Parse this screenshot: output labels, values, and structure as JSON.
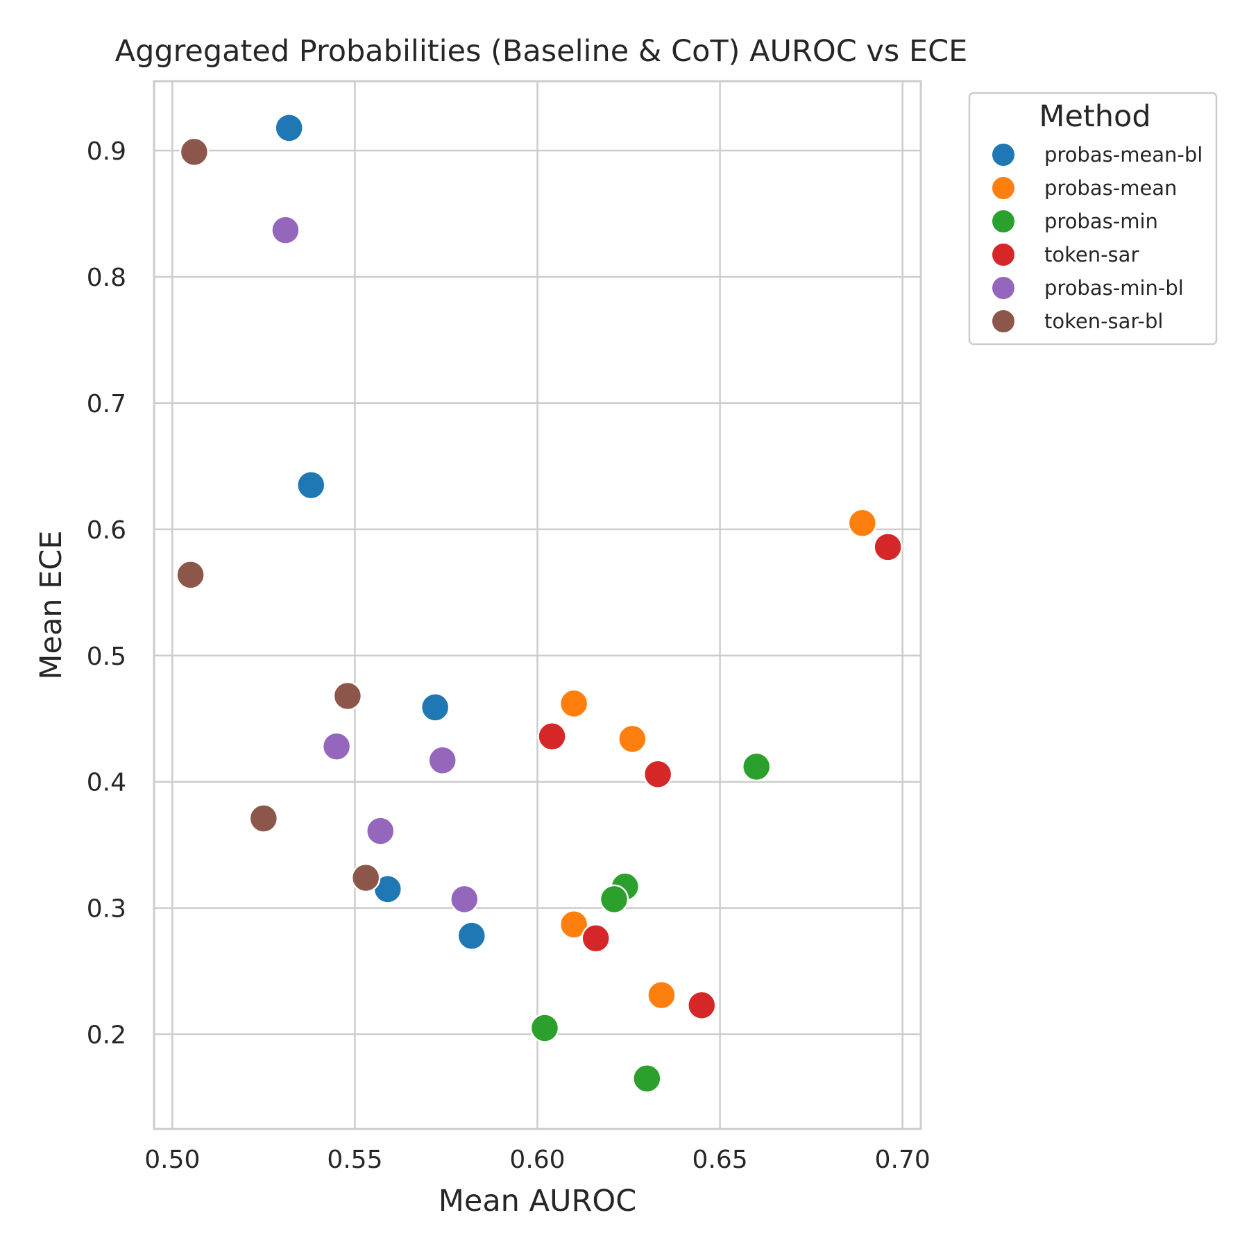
{
  "chart_data": {
    "type": "scatter",
    "title": "Aggregated Probabilities (Baseline & CoT) AUROC vs ECE",
    "xlabel": "Mean AUROC",
    "ylabel": "Mean ECE",
    "xlim": [
      0.495,
      0.705
    ],
    "ylim": [
      0.125,
      0.955
    ],
    "xticks": [
      "0.50",
      "0.55",
      "0.60",
      "0.65",
      "0.70"
    ],
    "yticks": [
      "0.2",
      "0.3",
      "0.4",
      "0.5",
      "0.6",
      "0.7",
      "0.8",
      "0.9"
    ],
    "grid": true,
    "legend": {
      "title": "Method",
      "placement": "outside-right-top"
    },
    "series": [
      {
        "name": "probas-mean-bl",
        "color": "#1f77b4",
        "points": [
          [
            0.532,
            0.918
          ],
          [
            0.538,
            0.635
          ],
          [
            0.572,
            0.459
          ],
          [
            0.559,
            0.315
          ],
          [
            0.582,
            0.278
          ]
        ]
      },
      {
        "name": "probas-mean",
        "color": "#ff7f0e",
        "points": [
          [
            0.689,
            0.605
          ],
          [
            0.61,
            0.462
          ],
          [
            0.626,
            0.434
          ],
          [
            0.61,
            0.287
          ],
          [
            0.634,
            0.231
          ]
        ]
      },
      {
        "name": "probas-min",
        "color": "#2ca02c",
        "points": [
          [
            0.66,
            0.412
          ],
          [
            0.624,
            0.317
          ],
          [
            0.621,
            0.307
          ],
          [
            0.602,
            0.205
          ],
          [
            0.63,
            0.165
          ]
        ]
      },
      {
        "name": "token-sar",
        "color": "#d62728",
        "points": [
          [
            0.696,
            0.586
          ],
          [
            0.604,
            0.436
          ],
          [
            0.633,
            0.406
          ],
          [
            0.616,
            0.276
          ],
          [
            0.645,
            0.223
          ]
        ]
      },
      {
        "name": "probas-min-bl",
        "color": "#9467bd",
        "points": [
          [
            0.531,
            0.837
          ],
          [
            0.545,
            0.428
          ],
          [
            0.574,
            0.417
          ],
          [
            0.557,
            0.361
          ],
          [
            0.58,
            0.307
          ]
        ]
      },
      {
        "name": "token-sar-bl",
        "color": "#8c564b",
        "points": [
          [
            0.506,
            0.899
          ],
          [
            0.505,
            0.564
          ],
          [
            0.548,
            0.468
          ],
          [
            0.525,
            0.371
          ],
          [
            0.553,
            0.324
          ]
        ]
      }
    ]
  }
}
